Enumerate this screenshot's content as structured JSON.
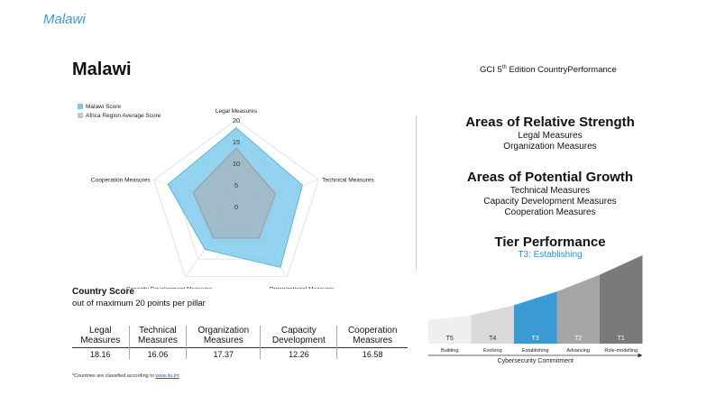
{
  "header": {
    "breadcrumb": "Malawi",
    "country": "Malawi",
    "edition_prefix": "GCI 5",
    "edition_sup": "th",
    "edition_suffix": " Edition CountryPerformance"
  },
  "legend": [
    {
      "label": "Malawi Score",
      "color": "#79c8ec"
    },
    {
      "label": "Africa Region Average Score",
      "color": "#c7c7c7"
    }
  ],
  "chart_data": {
    "type": "radar",
    "axes": [
      "Legal Measures",
      "Technical Measures",
      "Organizational Measures",
      "Capacity Development Measures",
      "Cooperation Measures"
    ],
    "range": [
      0,
      20
    ],
    "tick_labels": [
      "0",
      "5",
      "10",
      "15",
      "20"
    ],
    "series": [
      {
        "name": "Malawi Score",
        "values": [
          18.16,
          16.06,
          17.37,
          12.26,
          16.58
        ],
        "color": "#79c8ec"
      },
      {
        "name": "Africa Region Average Score",
        "values": [
          13.5,
          9.5,
          9.0,
          9.0,
          10.5
        ],
        "color": "#a9a9a9"
      }
    ]
  },
  "country_score": {
    "title": "Country Score",
    "subtitle": "out of maximum 20 points per pillar",
    "columns": [
      {
        "l1": "Legal",
        "l2": "Measures",
        "value": "18.16"
      },
      {
        "l1": "Technical",
        "l2": "Measures",
        "value": "16.06"
      },
      {
        "l1": "Organization",
        "l2": "Measures",
        "value": "17.37"
      },
      {
        "l1": "Capacity",
        "l2": "Development",
        "value": "12.26"
      },
      {
        "l1": "Cooperation",
        "l2": "Measures",
        "value": "16.58"
      }
    ]
  },
  "footnote": {
    "text": "*Countries are classified according to ",
    "link": "www.itu.int"
  },
  "strength": {
    "title": "Areas of Relative Strength",
    "items": [
      "Legal Measures",
      "Organization Measures"
    ]
  },
  "growth": {
    "title": "Areas of Potential Growth",
    "items": [
      "Technical Measures",
      "Capacity Development Measures",
      "Cooperation Measures"
    ]
  },
  "tier": {
    "title": "Tier Performance",
    "value": "T3: Establishing",
    "tiers": [
      {
        "code": "T5",
        "name": "Building",
        "color": "#efefef"
      },
      {
        "code": "T4",
        "name": "Evolving",
        "color": "#d9d9d9"
      },
      {
        "code": "T3",
        "name": "Establishing",
        "color": "#3a9ad3"
      },
      {
        "code": "T2",
        "name": "Advancing",
        "color": "#a6a6a6"
      },
      {
        "code": "T1",
        "name": "Role-modelling",
        "color": "#7a7a7a"
      }
    ],
    "active_index": 2,
    "axis_label": "Cybersecurity Commitment"
  }
}
